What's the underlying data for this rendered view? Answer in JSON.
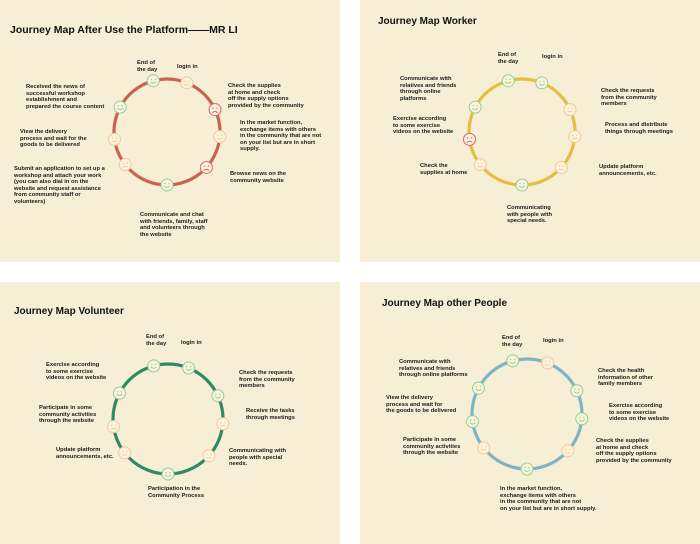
{
  "colors": {
    "background": "#ffffff",
    "panel": "#f6efd6",
    "face_fill": "#fbf3da",
    "face_happy": "#8fcf9c",
    "face_neutral": "#f3c7a0",
    "face_sad": "#e0607a",
    "ring_mr_li": "#c96452",
    "ring_worker": "#e3bf41",
    "ring_volunteer": "#2f8a64",
    "ring_other": "#7fb4c7"
  },
  "icons": {
    "happy": "smiling-face-icon",
    "neutral": "neutral-face-icon",
    "sad": "frowning-face-icon"
  },
  "panels": [
    {
      "id": "mr-li",
      "title": "Journey Map After Use the Platform——MR LI",
      "ring_color_key": "ring_mr_li",
      "faces": [
        "happy",
        "neutral",
        "sad",
        "neutral",
        "sad",
        "happy",
        "neutral",
        "neutral",
        "happy"
      ],
      "labels": [
        "End of\nthe day",
        "login in",
        "Check the supplies\nat home and check\noff the supply options\nprovided by the community",
        "In the market function,\nexchange items with others\nin the community that are not\non your list but are in short\nsupply.",
        "Browse news on the\ncommunity website",
        "Communicate and chat\nwith friends, family, staff\nand volunteers through\nthe website",
        "Submit an application to set up a\nworkshop and attach your work\n(you can also dial in on the\nwebsite and request assistance\nfrom community staff or\nvolunteers)",
        "View the delivery\nprocess and wait for the\ngoods to be delivered",
        "Received the news of\nsuccessful workshop\nestablishment and\nprepared the course content"
      ]
    },
    {
      "id": "worker",
      "title": "Journey Map  Worker",
      "ring_color_key": "ring_worker",
      "faces": [
        "happy",
        "happy",
        "neutral",
        "neutral",
        "neutral",
        "happy",
        "neutral",
        "sad",
        "happy"
      ],
      "labels": [
        "End of\nthe day",
        "login in",
        "Check the requests\nfrom the community\nmembers",
        "Process and distribute\nthings through meetings",
        "Update platform\nannouncements, etc.",
        "Communicating\nwith people with\nspecial needs.",
        "Check the\nsupplies at home",
        "Exercise according\nto some exercise\nvideos on the website",
        "Communicate with\nrelatives and friends\nthrough online\nplatforms"
      ]
    },
    {
      "id": "volunteer",
      "title": "Journey Map  Volunteer",
      "ring_color_key": "ring_volunteer",
      "faces": [
        "happy",
        "happy",
        "happy",
        "neutral",
        "neutral",
        "happy",
        "neutral",
        "neutral",
        "happy"
      ],
      "labels": [
        "End of\nthe day",
        "login in",
        "Check the requests\nfrom the community\nmembers",
        "Receive the tasks\nthrough meetings",
        "Communicating with\npeople with special\nneeds.",
        "Participation in the\nCommunity Process",
        "Update platform\nannouncements, etc.",
        "Participate in some\ncommunity activities\nthrough the website",
        "Exercise according\nto some exercise\nvideos on the website"
      ]
    },
    {
      "id": "other",
      "title": "Journey Map  other People",
      "ring_color_key": "ring_other",
      "faces": [
        "happy",
        "neutral",
        "happy",
        "happy",
        "neutral",
        "happy",
        "neutral",
        "happy",
        "happy"
      ],
      "labels": [
        "End of\nthe day",
        "login in",
        "Check the health\ninformation of other\nfamily members",
        "Exercise according\nto some exercise\nvideos on the website",
        "Check the supplies\nat home and check\noff the supply options\nprovided by the community",
        "In the market function,\nexchange items with others\nin the community that are not\non your list but are in short supply.",
        "Participate in some\ncommunity activities\nthrough the website",
        "View the delivery\nprocess and wait for\nthe goods to be delivered",
        "Communicate with\nrelatives and friends\nthrough online platforms"
      ]
    }
  ]
}
